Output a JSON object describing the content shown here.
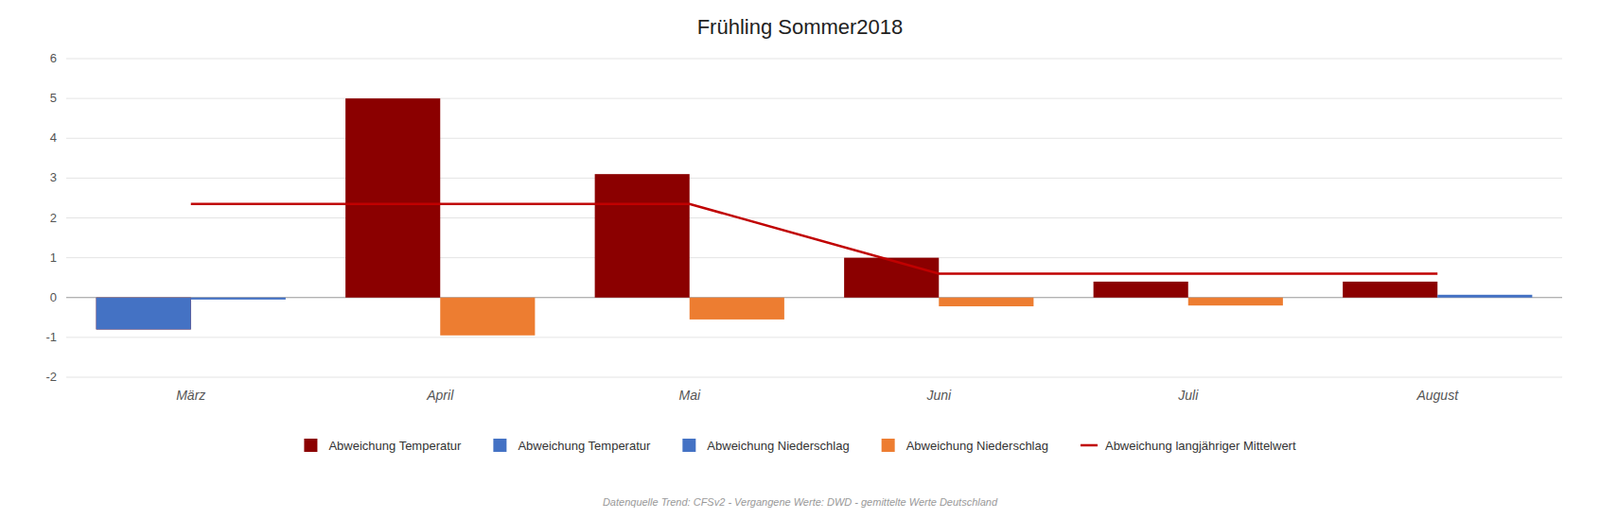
{
  "chart_data": {
    "type": "bar",
    "title": "Frühling Sommer2018",
    "categories": [
      "März",
      "April",
      "Mai",
      "Juni",
      "Juli",
      "August"
    ],
    "series": [
      {
        "name": "Abweichung Temperatur",
        "color": "#8B0000",
        "values": [
          -0.8,
          5.0,
          3.1,
          1.0,
          0.4,
          0.4
        ]
      },
      {
        "name": "Abweichung Temperatur",
        "color": "#4472C4",
        "values": [
          -0.8,
          0.0,
          0.0,
          0.0,
          0.0,
          0.0
        ]
      },
      {
        "name": "Abweichung Niederschlag",
        "color": "#4472C4",
        "values": [
          -0.05,
          0.0,
          0.0,
          0.0,
          0.0,
          0.07
        ]
      },
      {
        "name": "Abweichung Niederschlag",
        "color": "#ED7D31",
        "values": [
          0.0,
          -0.95,
          -0.55,
          -0.22,
          -0.2,
          0.0
        ]
      },
      {
        "name": "Abweichung langjähriger Mittelwert",
        "color": "#C00000",
        "type": "line",
        "values": [
          2.35,
          2.35,
          2.35,
          0.6,
          0.6,
          0.6
        ]
      }
    ],
    "ylim": [
      -2.0,
      6.0
    ],
    "yticks": [
      -2,
      -1,
      0,
      1,
      2,
      3,
      4,
      5,
      6
    ],
    "grid": true,
    "legend": "bottom",
    "annotations": [
      "Datenquelle Trend: CFSv2 - Vergangene Werte: DWD - gemittelte Werte Deutschland"
    ]
  }
}
